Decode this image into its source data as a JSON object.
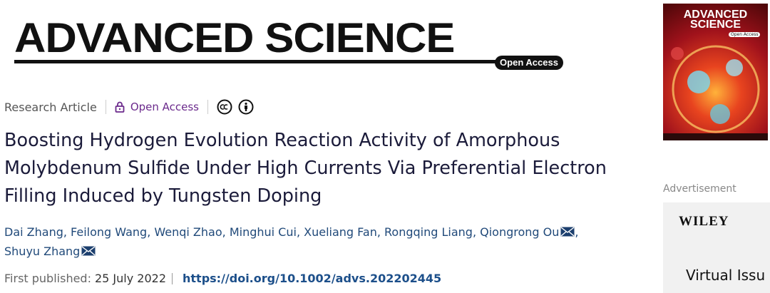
{
  "journal": {
    "title": "ADVANCED SCIENCE",
    "badge": "Open Access"
  },
  "article": {
    "type": "Research Article",
    "access": "Open Access",
    "title": "Boosting Hydrogen Evolution Reaction Activity of Amorphous Molybdenum Sulfide Under High Currents Via Preferential Electron Filling Induced by Tungsten Doping",
    "authors": [
      {
        "name": "Dai Zhang",
        "corresponding": false
      },
      {
        "name": "Feilong Wang",
        "corresponding": false
      },
      {
        "name": "Wenqi Zhao",
        "corresponding": false
      },
      {
        "name": "Minghui Cui",
        "corresponding": false
      },
      {
        "name": "Xueliang Fan",
        "corresponding": false
      },
      {
        "name": "Rongqing Liang",
        "corresponding": false
      },
      {
        "name": "Qiongrong Ou",
        "corresponding": true
      },
      {
        "name": "Shuyu Zhang",
        "corresponding": true
      }
    ],
    "author_separator": ",",
    "published_label": "First published:",
    "published_date": "25 July 2022",
    "doi": "https://doi.org/10.1002/advs.202202445"
  },
  "sidebar": {
    "cover_title": "ADVANCED SCIENCE",
    "cover_badge": "Open Access",
    "advertisement": "Advertisement",
    "ad_brand": "WILEY",
    "ad_text": "Virtual Issu"
  }
}
